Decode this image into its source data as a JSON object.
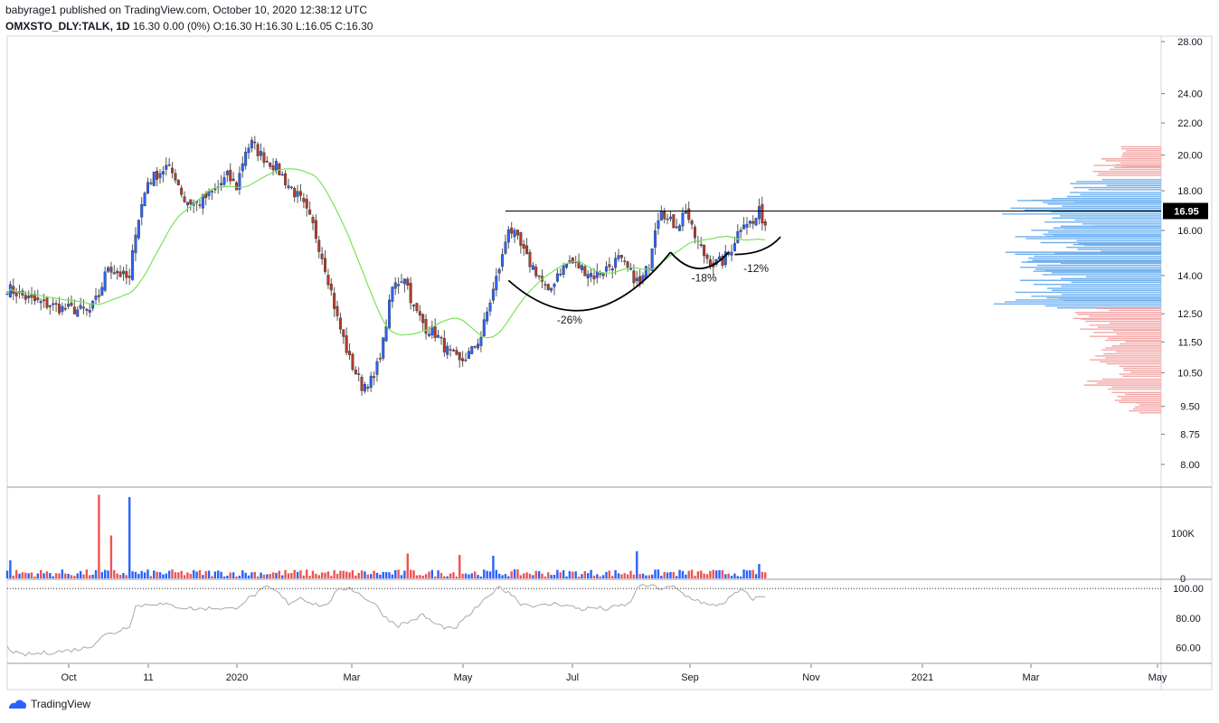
{
  "header": {
    "published_line": "babyrage1 published on TradingView.com, October 10, 2020 12:38:12 UTC",
    "symbol": "OMXSTO_DLY:TALK, 1D",
    "ohlc": "16.30 0.00 (0%) O:16.30 H:16.30 L:16.05 C:16.30"
  },
  "footer": {
    "brand": "TradingView",
    "logo_icon": "tradingview-logo-icon"
  },
  "colors": {
    "up": "#2962ff",
    "down": "#b33a2a",
    "ma": "#7be25a",
    "vp_up": "#6fb0ef",
    "vp_down": "#f4a6a6",
    "vol_up": "#2962ff",
    "vol_down": "#ef5350",
    "rsi": "#a8a8a8"
  },
  "chart_data": [
    {
      "type": "candlestick",
      "symbol": "OMXSTO_DLY:TALK",
      "interval": "1D",
      "y_scale": "log",
      "ylim": [
        7.5,
        28.0
      ],
      "y_ticks": [
        "28.00",
        "24.00",
        "22.00",
        "20.00",
        "18.00",
        "16.00",
        "14.00",
        "12.50",
        "11.50",
        "10.50",
        "9.50",
        "8.75",
        "8.00"
      ],
      "x_ticks": [
        "Oct",
        "11",
        "2020",
        "Mar",
        "May",
        "Jul",
        "Sep",
        "Nov",
        "2021",
        "Mar",
        "May"
      ],
      "price_line": 16.95,
      "price_label": "16.95",
      "annotations": [
        "-26%",
        "-18%",
        "-12%"
      ],
      "path": [
        [
          0,
          13.5
        ],
        [
          8,
          13.0
        ],
        [
          18,
          12.7
        ],
        [
          27,
          12.6
        ],
        [
          30,
          13.2
        ],
        [
          33,
          14.4
        ],
        [
          40,
          13.8
        ],
        [
          42,
          16.0
        ],
        [
          46,
          18.5
        ],
        [
          52,
          19.3
        ],
        [
          55,
          18.8
        ],
        [
          58,
          17.5
        ],
        [
          62,
          17.3
        ],
        [
          68,
          18.0
        ],
        [
          72,
          18.8
        ],
        [
          75,
          18.2
        ],
        [
          78,
          20.3
        ],
        [
          80,
          20.7
        ],
        [
          83,
          20.0
        ],
        [
          88,
          19.3
        ],
        [
          92,
          18.3
        ],
        [
          96,
          17.5
        ],
        [
          100,
          16.2
        ],
        [
          104,
          14.4
        ],
        [
          108,
          12.3
        ],
        [
          112,
          10.9
        ],
        [
          116,
          10.1
        ],
        [
          120,
          10.3
        ],
        [
          123,
          11.5
        ],
        [
          126,
          13.5
        ],
        [
          130,
          14.0
        ],
        [
          133,
          12.7
        ],
        [
          137,
          12.0
        ],
        [
          140,
          11.8
        ],
        [
          144,
          11.2
        ],
        [
          148,
          10.8
        ],
        [
          152,
          11.2
        ],
        [
          155,
          11.7
        ],
        [
          159,
          13.4
        ],
        [
          162,
          14.8
        ],
        [
          164,
          16.2
        ],
        [
          167,
          15.5
        ],
        [
          170,
          14.7
        ],
        [
          174,
          14.0
        ],
        [
          177,
          13.2
        ],
        [
          180,
          14.1
        ],
        [
          184,
          14.6
        ],
        [
          188,
          14.3
        ],
        [
          192,
          14.0
        ],
        [
          196,
          14.3
        ],
        [
          200,
          14.7
        ],
        [
          204,
          14.1
        ],
        [
          207,
          13.6
        ],
        [
          210,
          14.5
        ],
        [
          212,
          16.2
        ],
        [
          214,
          17.2
        ],
        [
          216,
          16.5
        ],
        [
          218,
          16.3
        ],
        [
          220,
          16.4
        ],
        [
          222,
          17.1
        ],
        [
          224,
          16.0
        ],
        [
          226,
          15.4
        ],
        [
          228,
          14.9
        ],
        [
          231,
          14.5
        ],
        [
          234,
          14.6
        ],
        [
          237,
          15.2
        ],
        [
          239,
          15.9
        ],
        [
          241,
          16.5
        ],
        [
          244,
          16.3
        ],
        [
          246,
          16.9
        ],
        [
          248,
          16.3
        ]
      ],
      "volume_ylim": [
        0,
        190000
      ],
      "volume_ticks": [
        "100K",
        "0"
      ],
      "volume_spikes": [
        [
          1,
          40000
        ],
        [
          30,
          185000
        ],
        [
          34,
          95000
        ],
        [
          40,
          180000
        ],
        [
          131,
          55000
        ],
        [
          148,
          52000
        ],
        [
          159,
          50000
        ],
        [
          206,
          60000
        ],
        [
          246,
          32000
        ]
      ],
      "rsi_ylim": [
        50,
        105
      ],
      "rsi_ticks": [
        "100.00",
        "80.00",
        "60.00"
      ],
      "rsi_level": 100,
      "rsi_path": [
        [
          0,
          60
        ],
        [
          4,
          55
        ],
        [
          10,
          56
        ],
        [
          20,
          58
        ],
        [
          26,
          60
        ],
        [
          28,
          62
        ],
        [
          31,
          68
        ],
        [
          35,
          70
        ],
        [
          40,
          75
        ],
        [
          42,
          88
        ],
        [
          48,
          90
        ],
        [
          55,
          88
        ],
        [
          62,
          86
        ],
        [
          68,
          87
        ],
        [
          74,
          86
        ],
        [
          78,
          92
        ],
        [
          82,
          97
        ],
        [
          85,
          101
        ],
        [
          88,
          98
        ],
        [
          92,
          90
        ],
        [
          96,
          94
        ],
        [
          100,
          90
        ],
        [
          104,
          88
        ],
        [
          108,
          98
        ],
        [
          112,
          101
        ],
        [
          116,
          95
        ],
        [
          120,
          90
        ],
        [
          124,
          80
        ],
        [
          128,
          75
        ],
        [
          132,
          78
        ],
        [
          136,
          82
        ],
        [
          140,
          76
        ],
        [
          146,
          72
        ],
        [
          150,
          80
        ],
        [
          154,
          88
        ],
        [
          158,
          95
        ],
        [
          160,
          101
        ],
        [
          164,
          98
        ],
        [
          168,
          90
        ],
        [
          174,
          88
        ],
        [
          180,
          90
        ],
        [
          184,
          88
        ],
        [
          188,
          86
        ],
        [
          192,
          87
        ],
        [
          196,
          86
        ],
        [
          200,
          88
        ],
        [
          204,
          90
        ],
        [
          206,
          101
        ],
        [
          210,
          102
        ],
        [
          214,
          100
        ],
        [
          218,
          101
        ],
        [
          222,
          95
        ],
        [
          226,
          92
        ],
        [
          230,
          88
        ],
        [
          234,
          90
        ],
        [
          238,
          96
        ],
        [
          240,
          99
        ],
        [
          244,
          93
        ],
        [
          248,
          95
        ]
      ],
      "volume_profile": [
        [
          20.5,
          0.25,
          "down"
        ],
        [
          19.9,
          0.35,
          "down"
        ],
        [
          19.4,
          0.4,
          "down"
        ],
        [
          18.6,
          0.55,
          "up"
        ],
        [
          17.9,
          0.8,
          "up"
        ],
        [
          17.5,
          0.85,
          "up"
        ],
        [
          17.1,
          0.9,
          "up"
        ],
        [
          16.6,
          0.65,
          "up"
        ],
        [
          16.2,
          0.75,
          "up"
        ],
        [
          15.8,
          0.85,
          "up"
        ],
        [
          15.4,
          0.6,
          "up"
        ],
        [
          15.0,
          0.9,
          "up"
        ],
        [
          14.6,
          0.8,
          "up"
        ],
        [
          14.2,
          0.7,
          "up"
        ],
        [
          13.8,
          0.8,
          "up"
        ],
        [
          13.4,
          0.95,
          "up"
        ],
        [
          13.1,
          1.0,
          "up"
        ],
        [
          12.7,
          0.5,
          "down"
        ],
        [
          12.3,
          0.45,
          "down"
        ],
        [
          11.9,
          0.4,
          "down"
        ],
        [
          11.5,
          0.35,
          "down"
        ],
        [
          11.1,
          0.4,
          "down"
        ],
        [
          10.7,
          0.3,
          "down"
        ],
        [
          10.3,
          0.45,
          "down"
        ],
        [
          9.9,
          0.3,
          "down"
        ],
        [
          9.6,
          0.2,
          "down"
        ]
      ]
    }
  ]
}
